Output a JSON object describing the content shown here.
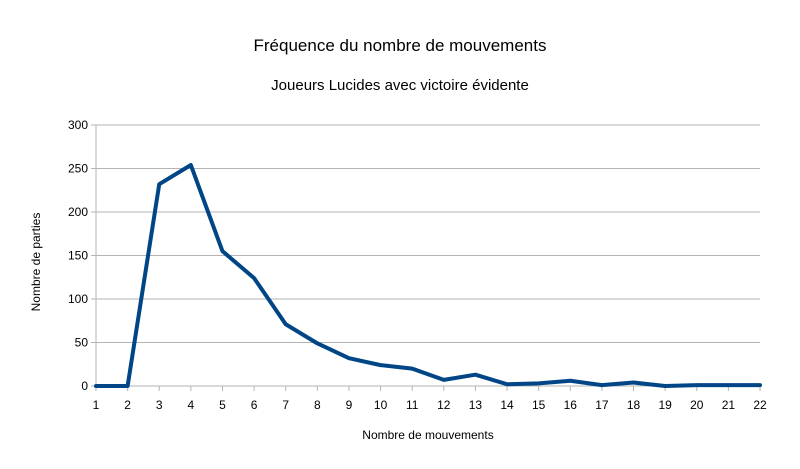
{
  "chart_data": {
    "type": "line",
    "title": "Fréquence du nombre de mouvements",
    "subtitle": "Joueurs Lucides avec victoire évidente",
    "xlabel": "Nombre de mouvements",
    "ylabel": "Nombre de parties",
    "x": [
      1,
      2,
      3,
      4,
      5,
      6,
      7,
      8,
      9,
      10,
      11,
      12,
      13,
      14,
      15,
      16,
      17,
      18,
      19,
      20,
      21,
      22
    ],
    "series": [
      {
        "values": [
          0,
          0,
          232,
          254,
          155,
          124,
          71,
          49,
          32,
          24,
          20,
          7,
          13,
          2,
          3,
          6,
          1,
          4,
          0,
          1,
          1,
          1
        ]
      }
    ],
    "ylim": [
      0,
      300
    ],
    "yticks": [
      0,
      50,
      100,
      150,
      200,
      250,
      300
    ],
    "grid": true,
    "legend": "none",
    "line_color": "#004586"
  }
}
